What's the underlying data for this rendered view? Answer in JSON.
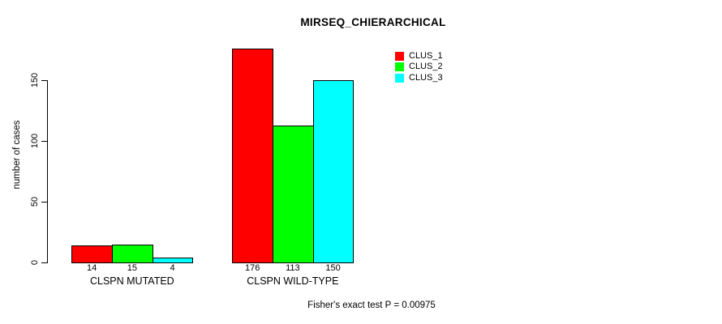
{
  "chart_data": {
    "type": "bar",
    "title": "MIRSEQ_CHIERARCHICAL",
    "xlabel": "",
    "ylabel": "number of cases",
    "categories": [
      "CLSPN MUTATED",
      "CLSPN WILD-TYPE"
    ],
    "series": [
      {
        "name": "CLUS_1",
        "color": "#ff0000",
        "values": [
          14,
          176
        ]
      },
      {
        "name": "CLUS_2",
        "color": "#00ff00",
        "values": [
          15,
          113
        ]
      },
      {
        "name": "CLUS_3",
        "color": "#00ffff",
        "values": [
          4,
          150
        ]
      }
    ],
    "bar_value_labels": [
      [
        14,
        15,
        4
      ],
      [
        176,
        113,
        150
      ]
    ],
    "yticks": [
      0,
      50,
      100,
      150
    ],
    "ylim": [
      0,
      176
    ],
    "grid": false,
    "legend_position": "top-right",
    "legend_entries": [
      "CLUS_1",
      "CLUS_2",
      "CLUS_3"
    ],
    "annotation": "Fisher's exact test P = 0.00975",
    "colors": {
      "axis": "#000000",
      "text": "#000000",
      "background": "#ffffff"
    }
  }
}
